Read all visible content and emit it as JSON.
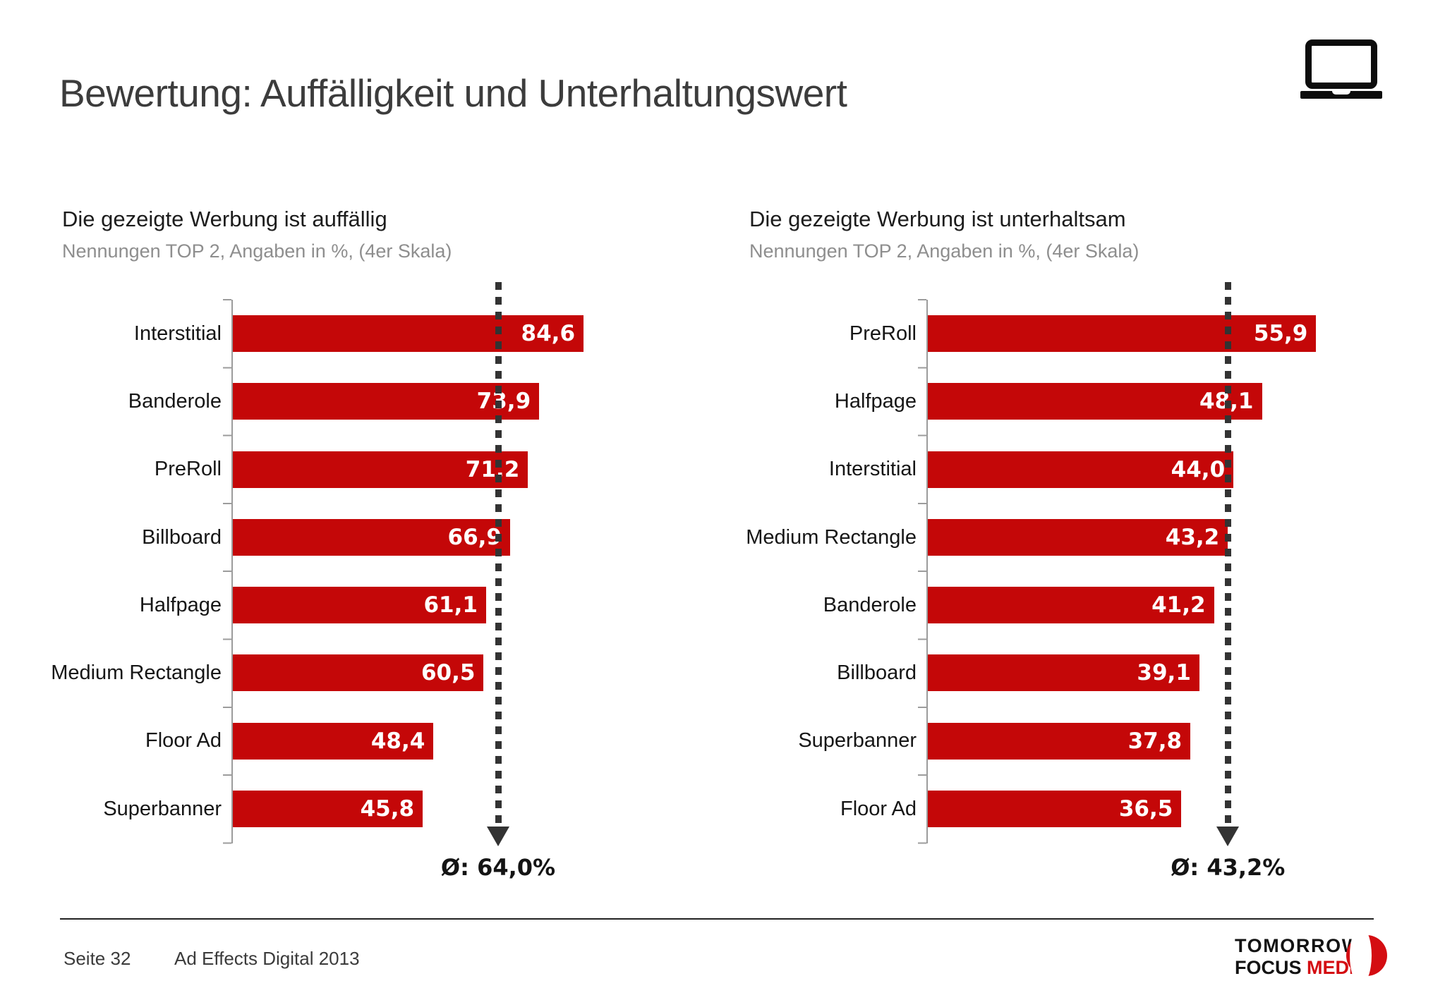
{
  "slide": {
    "title": "Bewertung: Auffälligkeit und Unterhaltungswert"
  },
  "chart_data": [
    {
      "type": "bar",
      "orientation": "horizontal",
      "title": "Die gezeigte Werbung ist auffällig",
      "subtitle": "Nennungen TOP 2, Angaben in %, (4er Skala)",
      "categories": [
        "Interstitial",
        "Banderole",
        "PreRoll",
        "Billboard",
        "Halfpage",
        "Medium Rectangle",
        "Floor Ad",
        "Superbanner"
      ],
      "values": [
        84.6,
        73.9,
        71.2,
        66.9,
        61.1,
        60.5,
        48.4,
        45.8
      ],
      "value_labels": [
        "84,6",
        "73,9",
        "71,2",
        "66,9",
        "61,1",
        "60,5",
        "48,4",
        "45,8"
      ],
      "average": 64.0,
      "average_label": "Ø: 64,0%",
      "unit": "%",
      "xlim": [
        0,
        88
      ],
      "grid": false,
      "legend": "none",
      "bar_color": "#c40708"
    },
    {
      "type": "bar",
      "orientation": "horizontal",
      "title": "Die gezeigte Werbung ist unterhaltsam",
      "subtitle": "Nennungen TOP 2, Angaben in %, (4er Skala)",
      "categories": [
        "PreRoll",
        "Halfpage",
        "Interstitial",
        "Medium Rectangle",
        "Banderole",
        "Billboard",
        "Superbanner",
        "Floor Ad"
      ],
      "values": [
        55.9,
        48.1,
        44.0,
        43.2,
        41.2,
        39.1,
        37.8,
        36.5
      ],
      "value_labels": [
        "55,9",
        "48,1",
        "44,0",
        "43,2",
        "41,2",
        "39,1",
        "37,8",
        "36,5"
      ],
      "average": 43.2,
      "average_label": "Ø: 43,2%",
      "unit": "%",
      "xlim": [
        0,
        58
      ],
      "grid": false,
      "legend": "none",
      "bar_color": "#c40708"
    }
  ],
  "footer": {
    "page_label": "Seite 32",
    "source": "Ad Effects Digital 2013"
  },
  "logo": {
    "line1": "TOMORROW",
    "line2_black": "FOCUS ",
    "line2_red": "MEDIA"
  },
  "icons": {
    "laptop": "laptop-icon",
    "average_marker": "dashed-arrow-down-icon",
    "logo_mark": "crescent-logo-icon"
  },
  "colors": {
    "bar_red": "#c40708",
    "logo_red": "#d40d12",
    "title_gray": "#3c3c3c",
    "subtitle_gray": "#8e8e8e",
    "axis_gray": "#9c9c9c",
    "dashed_line": "#333333"
  }
}
